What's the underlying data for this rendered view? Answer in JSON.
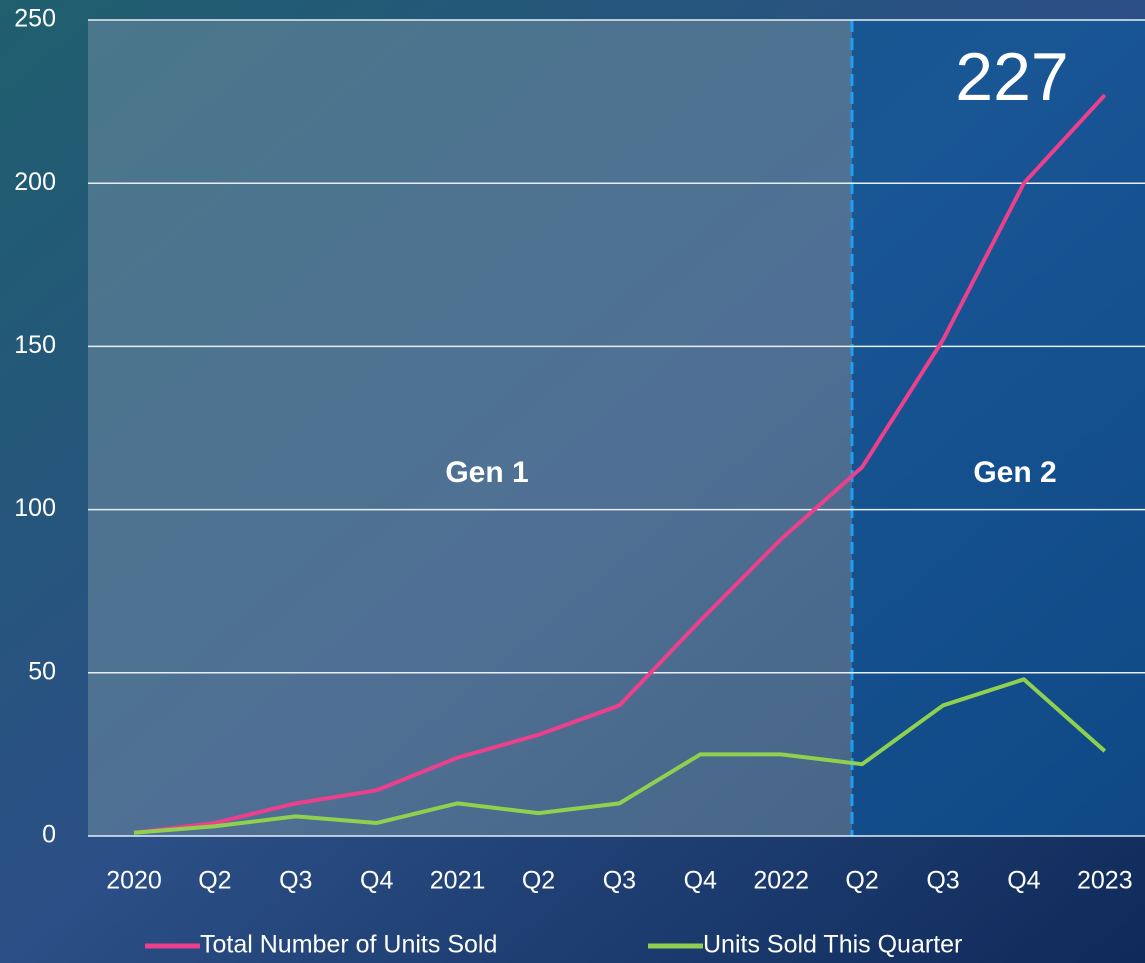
{
  "chart_data": {
    "type": "line",
    "categories": [
      "2020",
      "Q2",
      "Q3",
      "Q4",
      "2021",
      "Q2",
      "Q3",
      "Q4",
      "2022",
      "Q2",
      "Q3",
      "Q4",
      "2023"
    ],
    "series": [
      {
        "name": "Total Number of Units Sold",
        "color": "#ec3f8c",
        "values": [
          1,
          4,
          10,
          14,
          24,
          31,
          40,
          66,
          91,
          113,
          152,
          200,
          227
        ]
      },
      {
        "name": "Units Sold This Quarter",
        "color": "#8fd14f",
        "values": [
          1,
          3,
          6,
          4,
          10,
          7,
          10,
          25,
          25,
          22,
          40,
          48,
          26
        ]
      }
    ],
    "ylim": [
      0,
      250
    ],
    "yticks": [
      0,
      50,
      100,
      150,
      200,
      250
    ],
    "grid": true,
    "annotations": [
      "227",
      "Gen 1",
      "Gen 2"
    ],
    "legend": "bottom"
  }
}
